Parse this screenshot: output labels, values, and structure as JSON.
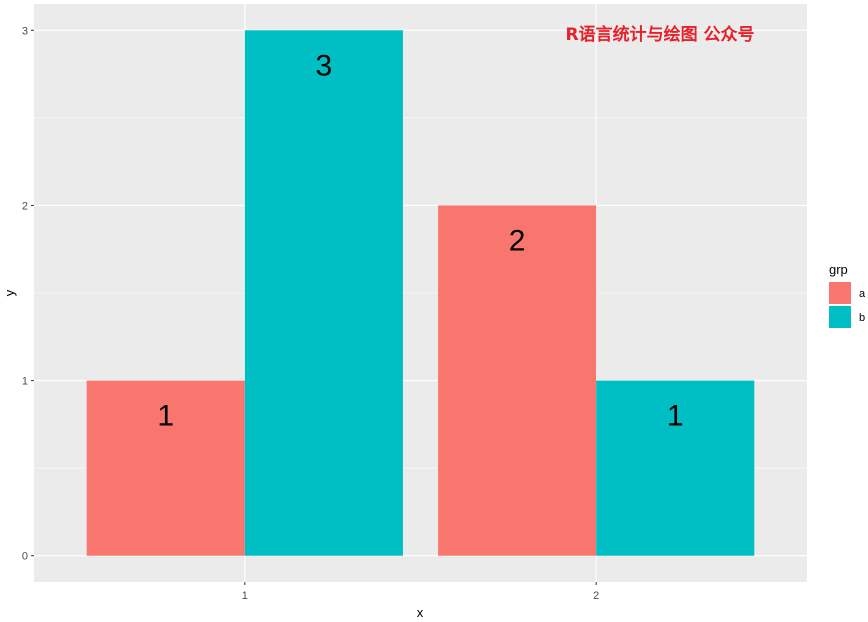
{
  "chart_data": {
    "type": "bar",
    "categories": [
      "1",
      "2"
    ],
    "series": [
      {
        "name": "a",
        "color": "#F8766D",
        "values": [
          1,
          2
        ]
      },
      {
        "name": "b",
        "color": "#00BFC4",
        "values": [
          3,
          1
        ]
      }
    ],
    "y_ticks": [
      "0",
      "1",
      "2",
      "3"
    ],
    "ylim": [
      -0.15,
      3.15
    ],
    "xlabel": "x",
    "ylabel": "y",
    "legend": {
      "title": "grp",
      "placement": "right"
    },
    "grid": true,
    "panel_background": "#EBEBEB",
    "gridline_color": "#FFFFFF"
  },
  "watermark": "R语言统计与绘图 公众号"
}
